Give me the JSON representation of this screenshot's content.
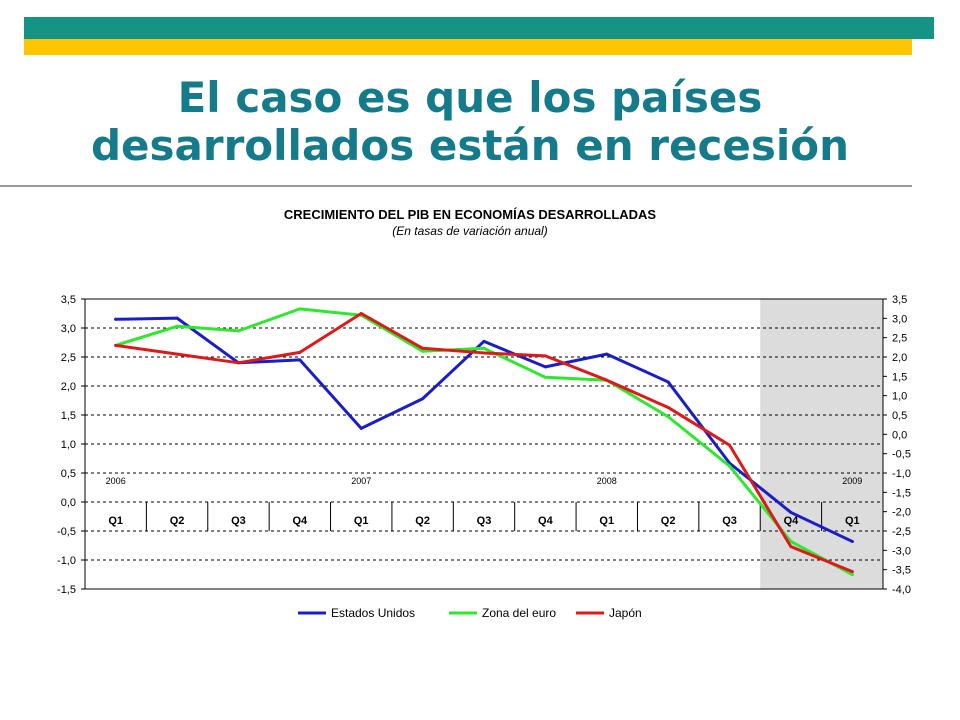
{
  "slide": {
    "title": "El caso es que los países\ndesarrollados están en recesión",
    "teal_color": "#159485",
    "yellow_color": "#ffc600"
  },
  "chart_data": {
    "type": "line",
    "title": "CRECIMIENTO DEL PIB EN ECONOMÍAS DESARROLLADAS",
    "subtitle": "(En tasas de variación anual)",
    "quarters": [
      "Q1",
      "Q2",
      "Q3",
      "Q4",
      "Q1",
      "Q2",
      "Q3",
      "Q4",
      "Q1",
      "Q2",
      "Q3",
      "Q4",
      "Q1"
    ],
    "years": [
      {
        "label": "2006",
        "index": 0
      },
      {
        "label": "2007",
        "index": 4
      },
      {
        "label": "2008",
        "index": 8
      },
      {
        "label": "2009",
        "index": 12
      }
    ],
    "ylim_left": [
      -1.5,
      3.5
    ],
    "ylim_right": [
      -4.0,
      3.5
    ],
    "yticks_left": [
      "3,5",
      "3,0",
      "2,5",
      "2,0",
      "1,5",
      "1,0",
      "0,5",
      "0,0",
      "-0,5",
      "-1,0",
      "-1,5"
    ],
    "yticks_right": [
      "3,5",
      "3,0",
      "2,5",
      "2,0",
      "1,5",
      "1,0",
      "0,5",
      "0,0",
      "-0,5",
      "-1,0",
      "-1,5",
      "-2,0",
      "-2,5",
      "-3,0",
      "-3,5",
      "-4,0"
    ],
    "grid": "horizontal dashed",
    "shaded_forecast_from_index": 11,
    "legend_position": "bottom",
    "series": [
      {
        "name": "Estados Unidos",
        "color": "#1a1ec8",
        "axis": "left",
        "values": [
          3.15,
          3.17,
          2.4,
          2.45,
          1.27,
          1.78,
          2.77,
          2.33,
          2.55,
          2.07,
          0.67,
          -0.18,
          -0.68
        ]
      },
      {
        "name": "Zona del euro",
        "color": "#2ee82e",
        "axis": "left",
        "values": [
          2.7,
          3.03,
          2.95,
          3.33,
          3.22,
          2.6,
          2.65,
          2.15,
          2.1,
          1.47,
          0.62,
          -0.68,
          -1.25
        ]
      },
      {
        "name": "Japón",
        "color": "#dd1a1a",
        "axis": "left",
        "values": [
          2.7,
          2.55,
          2.4,
          2.58,
          3.25,
          2.65,
          2.57,
          2.52,
          2.1,
          1.63,
          0.98,
          -0.77,
          -1.2
        ]
      }
    ]
  }
}
